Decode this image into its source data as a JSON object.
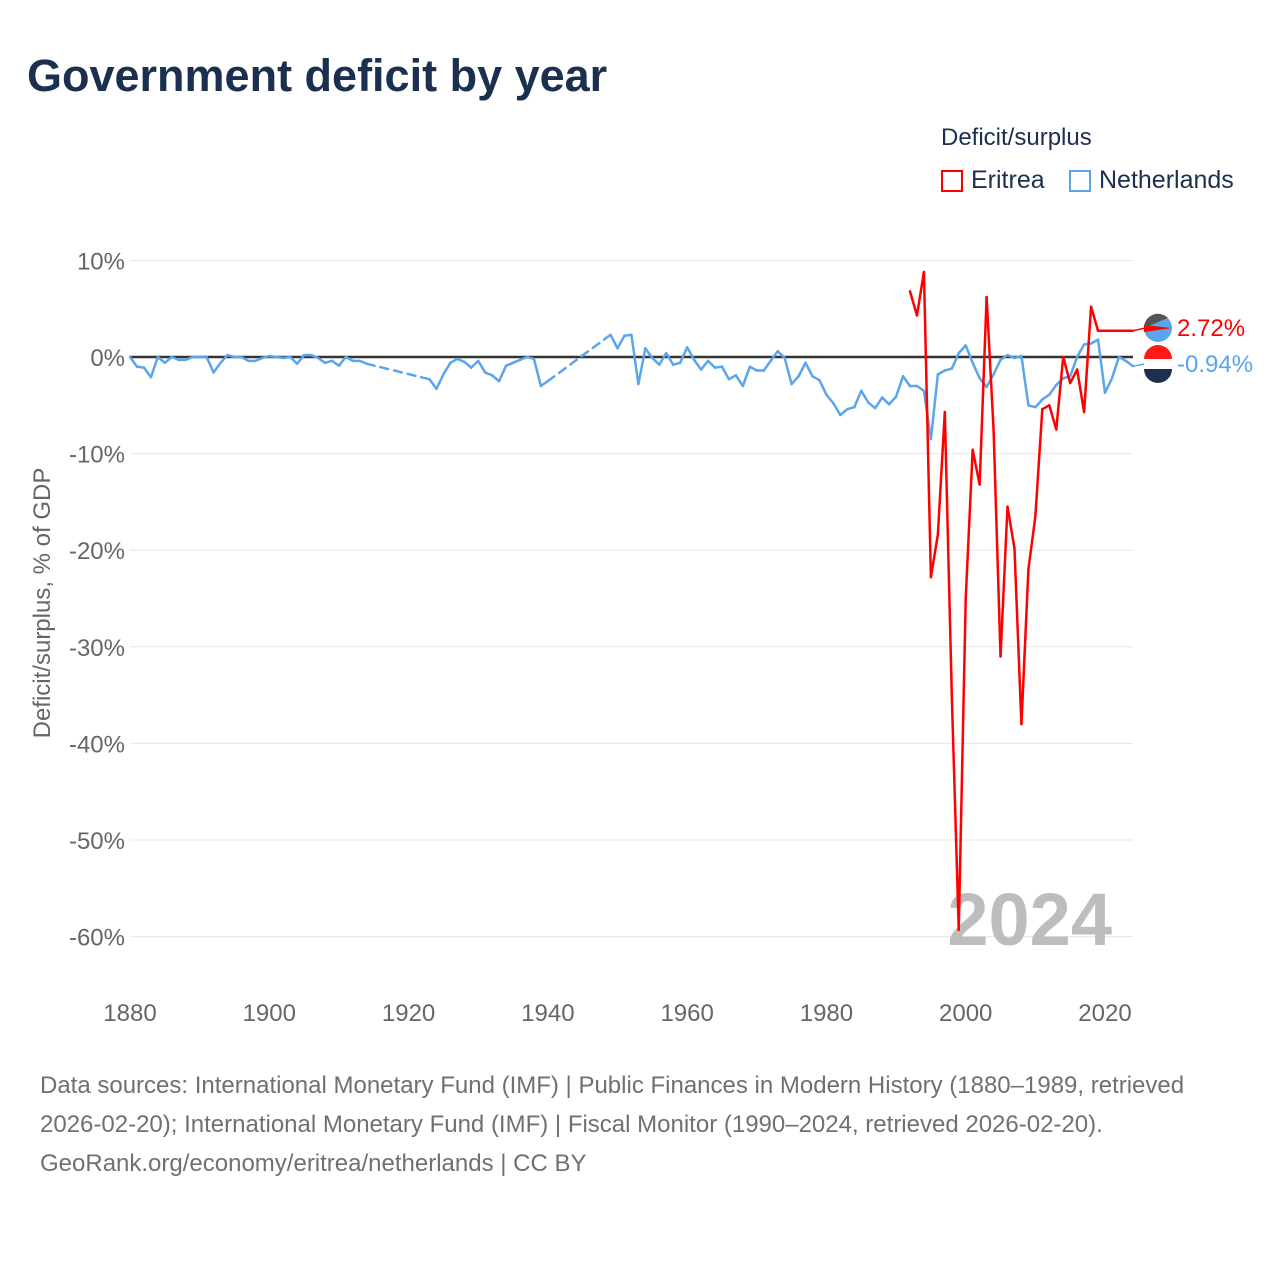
{
  "title": "Government deficit by year",
  "legend": {
    "title": "Deficit/surplus",
    "items": [
      "Eritrea",
      "Netherlands"
    ]
  },
  "year_watermark": "2024",
  "footer": {
    "sources": "Data sources: International Monetary Fund (IMF) | Public Finances in Modern History (1880–1989, retrieved 2026-02-20); International Monetary Fund (IMF) | Fiscal Monitor (1990–2024, retrieved 2026-02-20).",
    "credit": "GeoRank.org/economy/eritrea/netherlands | CC BY"
  },
  "chart_data": {
    "type": "line",
    "title": "Government deficit by year",
    "xlabel": "",
    "ylabel": "Deficit/surplus, % of GDP",
    "xlim": [
      1880,
      2024
    ],
    "ylim": [
      -60,
      10
    ],
    "x_ticks": [
      "1880",
      "1900",
      "1920",
      "1940",
      "1960",
      "1980",
      "2000",
      "2020"
    ],
    "y_ticks": [
      "10%",
      "0%",
      "-10%",
      "-20%",
      "-30%",
      "-40%",
      "-50%",
      "-60%"
    ],
    "end_labels": [
      "2.72%",
      "-0.94%"
    ],
    "series": [
      {
        "name": "Eritrea",
        "color": "#ff0000",
        "start": 1992,
        "values": [
          6.8,
          4.3,
          8.8,
          -22.8,
          -18.4,
          -5.7,
          -35,
          -59.3,
          -25,
          -9.6,
          -13.2,
          6.2,
          -7.5,
          -31,
          -15.5,
          -19.8,
          -38,
          -22,
          -16.5,
          -5.4,
          -5.0,
          -7.5,
          0,
          -2.7,
          -1.3,
          -5.7,
          5.2,
          2.72,
          2.72,
          2.72,
          2.72,
          2.72,
          2.72
        ]
      },
      {
        "name": "Netherlands",
        "color": "#5aa5ec",
        "start": 1880,
        "values": [
          0,
          -1,
          -1.1,
          -2.1,
          0,
          -0.6,
          0,
          -0.3,
          -0.3,
          0,
          0,
          0,
          -1.6,
          -0.6,
          0.2,
          0,
          0,
          -0.4,
          -0.4,
          -0.1,
          0.1,
          0,
          -0.1,
          0,
          -0.7,
          0.2,
          0.2,
          -0.1,
          -0.6,
          -0.4,
          -0.9,
          0,
          -0.4,
          -0.4,
          -0.7,
          null,
          null,
          null,
          null,
          null,
          null,
          null,
          null,
          -2.3,
          -3.3,
          -1.8,
          -0.6,
          -0.2,
          -0.5,
          -1.1,
          -0.4,
          -1.6,
          -1.9,
          -2.5,
          -0.9,
          -0.6,
          -0.3,
          0,
          -0.2,
          -3.0,
          -2.5,
          null,
          null,
          null,
          null,
          null,
          null,
          null,
          null,
          2.3,
          0.9,
          2.2,
          2.3,
          -2.8,
          0.9,
          -0.1,
          -0.8,
          0.4,
          -0.8,
          -0.6,
          1.0,
          -0.3,
          -1.3,
          -0.4,
          -1.1,
          -1.0,
          -2.3,
          -1.9,
          -3.0,
          -1.0,
          -1.4,
          -1.4,
          -0.4,
          0.6,
          -0.1,
          -2.8,
          -2.0,
          -0.6,
          -2.0,
          -2.4,
          -3.9,
          -4.8,
          -6.0,
          -5.4,
          -5.2,
          -3.5,
          -4.7,
          -5.3,
          -4.2,
          -4.9,
          -4.1,
          -2.0,
          -3.0,
          -3.0,
          -3.5,
          -8.5,
          -1.8,
          -1.4,
          -1.2,
          0.4,
          1.2,
          -0.6,
          -2.2,
          -3.1,
          -1.8,
          -0.3,
          0.2,
          -0.1,
          0.1,
          -5.0,
          -5.2,
          -4.4,
          -3.9,
          -2.9,
          -2.2,
          -2.0,
          0.0,
          1.3,
          1.4,
          1.8,
          -3.7,
          -2.2,
          0,
          -0.4,
          -0.94
        ]
      }
    ]
  }
}
